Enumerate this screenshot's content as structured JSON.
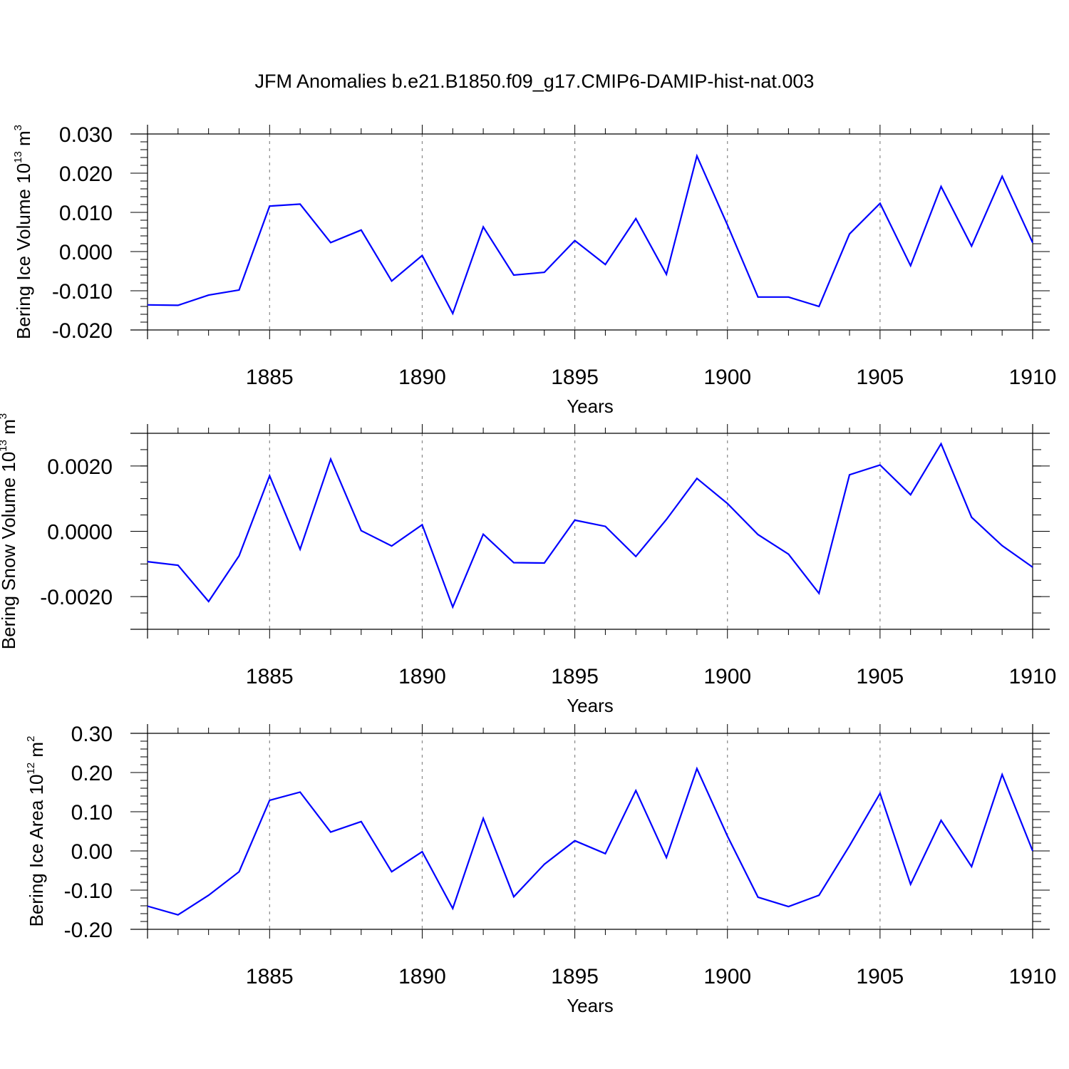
{
  "figure_title": "JFM Anomalies b.e21.B1850.f09_g17.CMIP6-DAMIP-hist-nat.003",
  "line_color": "#0000ff",
  "chart_data": [
    {
      "type": "line",
      "ylabel": {
        "text": "Bering Ice Volume 10",
        "sup1": "13",
        "mid": " m",
        "sup2": "3"
      },
      "xlabel": "Years",
      "xlim": [
        1881,
        1910
      ],
      "ylim": [
        -0.02,
        0.03
      ],
      "x_ticks": [
        1885,
        1890,
        1895,
        1900,
        1905,
        1910
      ],
      "x_tick_labels": [
        "1885",
        "1890",
        "1895",
        "1900",
        "1905",
        "1910"
      ],
      "y_ticks": [
        -0.02,
        -0.01,
        0.0,
        0.01,
        0.02,
        0.03
      ],
      "y_tick_labels": [
        "-0.020",
        "-0.010",
        "0.000",
        "0.010",
        "0.020",
        "0.030"
      ],
      "y_minor_step": 0.002,
      "x": [
        1881,
        1882,
        1883,
        1884,
        1885,
        1886,
        1887,
        1888,
        1889,
        1890,
        1891,
        1892,
        1893,
        1894,
        1895,
        1896,
        1897,
        1898,
        1899,
        1900,
        1901,
        1902,
        1903,
        1904,
        1905,
        1906,
        1907,
        1908,
        1909,
        1910
      ],
      "y": [
        -0.0136,
        -0.0137,
        -0.0111,
        -0.0098,
        0.0116,
        0.0121,
        0.0023,
        0.0055,
        -0.0075,
        -0.001,
        -0.0158,
        0.0063,
        -0.006,
        -0.0053,
        0.0028,
        -0.0033,
        0.0084,
        -0.0058,
        0.0244,
        0.0068,
        -0.0116,
        -0.0116,
        -0.014,
        0.0045,
        0.0123,
        -0.0036,
        0.0166,
        0.0014,
        0.0192,
        0.0023
      ]
    },
    {
      "type": "line",
      "ylabel": {
        "text": "Bering Snow Volume 10",
        "sup1": "13",
        "mid": " m",
        "sup2": "3"
      },
      "xlabel": "Years",
      "xlim": [
        1881,
        1910
      ],
      "ylim": [
        -0.003,
        0.003
      ],
      "x_ticks": [
        1885,
        1890,
        1895,
        1900,
        1905,
        1910
      ],
      "x_tick_labels": [
        "1885",
        "1890",
        "1895",
        "1900",
        "1905",
        "1910"
      ],
      "y_ticks": [
        -0.002,
        0.0,
        0.002
      ],
      "y_tick_labels": [
        "-0.0020",
        "0.0000",
        "0.0020"
      ],
      "y_minor_step": 0.0005,
      "x": [
        1881,
        1882,
        1883,
        1884,
        1885,
        1886,
        1887,
        1888,
        1889,
        1890,
        1891,
        1892,
        1893,
        1894,
        1895,
        1896,
        1897,
        1898,
        1899,
        1900,
        1901,
        1902,
        1903,
        1904,
        1905,
        1906,
        1907,
        1908,
        1909,
        1910
      ],
      "y": [
        -0.00093,
        -0.00104,
        -0.00215,
        -0.00075,
        0.0017,
        -0.00055,
        0.00221,
        2e-05,
        -0.00045,
        0.0002,
        -0.00232,
        -9e-05,
        -0.00096,
        -0.00097,
        0.00034,
        0.00015,
        -0.00077,
        0.00036,
        0.00162,
        0.00085,
        -0.0001,
        -0.0007,
        -0.0019,
        0.00173,
        0.00203,
        0.00112,
        0.00268,
        0.00043,
        -0.00044,
        -0.0011
      ]
    },
    {
      "type": "line",
      "ylabel": {
        "text": "Bering Ice Area 10",
        "sup1": "12",
        "mid": " m",
        "sup2": "2"
      },
      "xlabel": "Years",
      "xlim": [
        1881,
        1910
      ],
      "ylim": [
        -0.2,
        0.3
      ],
      "x_ticks": [
        1885,
        1890,
        1895,
        1900,
        1905,
        1910
      ],
      "x_tick_labels": [
        "1885",
        "1890",
        "1895",
        "1900",
        "1905",
        "1910"
      ],
      "y_ticks": [
        -0.2,
        -0.1,
        0.0,
        0.1,
        0.2,
        0.3
      ],
      "y_tick_labels": [
        "-0.20",
        "-0.10",
        "0.00",
        "0.10",
        "0.20",
        "0.30"
      ],
      "y_minor_step": 0.02,
      "x": [
        1881,
        1882,
        1883,
        1884,
        1885,
        1886,
        1887,
        1888,
        1889,
        1890,
        1891,
        1892,
        1893,
        1894,
        1895,
        1896,
        1897,
        1898,
        1899,
        1900,
        1901,
        1902,
        1903,
        1904,
        1905,
        1906,
        1907,
        1908,
        1909,
        1910
      ],
      "y": [
        -0.141,
        -0.163,
        -0.113,
        -0.053,
        0.129,
        0.15,
        0.048,
        0.075,
        -0.053,
        -0.002,
        -0.147,
        0.083,
        -0.117,
        -0.034,
        0.026,
        -0.007,
        0.154,
        -0.017,
        0.21,
        0.038,
        -0.118,
        -0.142,
        -0.113,
        0.013,
        0.147,
        -0.085,
        0.078,
        -0.04,
        0.195,
        0.0
      ]
    }
  ]
}
